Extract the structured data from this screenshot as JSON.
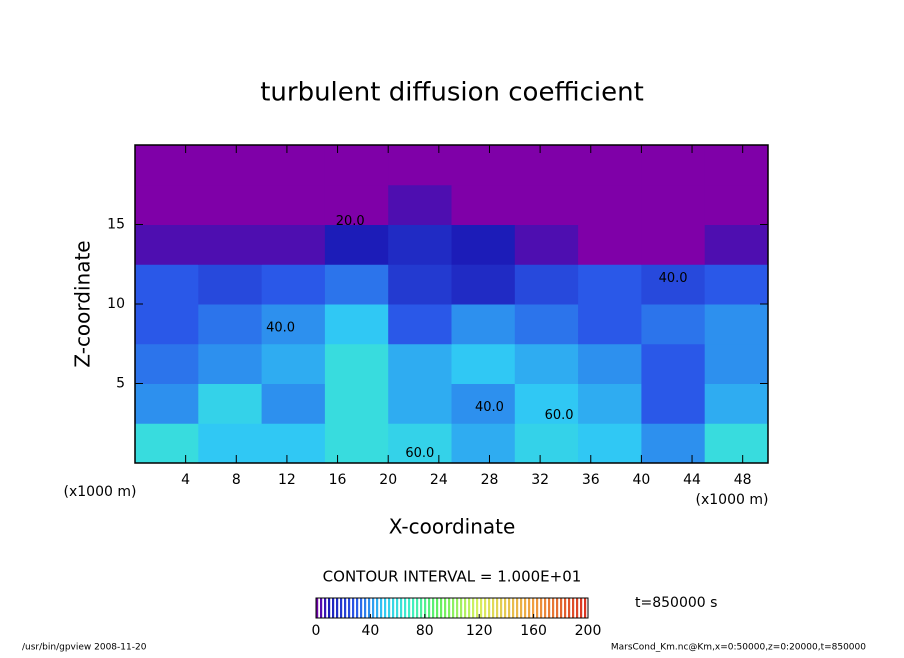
{
  "chart_data": {
    "type": "heatmap",
    "title": "turbulent diffusion coefficient",
    "xlabel": "X-coordinate",
    "ylabel": "Z-coordinate",
    "x_unit": "(x1000 m)",
    "y_unit": "(x1000 m)",
    "xlim": [
      0,
      50
    ],
    "ylim": [
      0,
      20
    ],
    "xticks": [
      4,
      8,
      12,
      16,
      20,
      24,
      28,
      32,
      36,
      40,
      44,
      48
    ],
    "yticks": [
      5,
      10,
      15
    ],
    "xbins": [
      0,
      5,
      10,
      15,
      20,
      25,
      30,
      35,
      40,
      45,
      50
    ],
    "ybins": [
      0,
      2.5,
      5,
      7.5,
      10,
      12.5,
      15,
      17.5,
      20
    ],
    "values": [
      [
        60,
        50,
        50,
        60,
        55,
        45,
        55,
        50,
        40,
        60
      ],
      [
        40,
        55,
        40,
        60,
        45,
        40,
        50,
        45,
        30,
        45
      ],
      [
        35,
        40,
        45,
        60,
        45,
        50,
        45,
        40,
        30,
        40
      ],
      [
        30,
        35,
        40,
        50,
        30,
        40,
        35,
        30,
        35,
        40
      ],
      [
        30,
        25,
        30,
        35,
        20,
        15,
        25,
        30,
        25,
        30
      ],
      [
        5,
        5,
        5,
        10,
        15,
        10,
        5,
        0,
        0,
        5
      ],
      [
        0,
        0,
        0,
        0,
        5,
        0,
        0,
        0,
        0,
        0
      ],
      [
        0,
        0,
        0,
        0,
        0,
        0,
        0,
        0,
        0,
        0
      ]
    ],
    "colormap": [
      [
        0,
        "#7f00a8"
      ],
      [
        10,
        "#1c1cb8"
      ],
      [
        30,
        "#2a58e8"
      ],
      [
        50,
        "#30c8f4"
      ],
      [
        70,
        "#40f0c8"
      ],
      [
        90,
        "#60f060"
      ],
      [
        120,
        "#d8f060"
      ],
      [
        160,
        "#f0a040"
      ],
      [
        200,
        "#d83020"
      ]
    ],
    "contour_labels": [
      {
        "text": "20.0",
        "x": 17,
        "y": 15.2
      },
      {
        "text": "40.0",
        "x": 11.5,
        "y": 8.5
      },
      {
        "text": "40.0",
        "x": 28,
        "y": 3.5
      },
      {
        "text": "60.0",
        "x": 22.5,
        "y": 0.6
      },
      {
        "text": "40.0",
        "x": 42.5,
        "y": 11.6
      },
      {
        "text": "60.0",
        "x": 33.5,
        "y": 3
      }
    ],
    "colorbar": {
      "lim": [
        0,
        200
      ],
      "ticks": [
        0,
        40,
        80,
        120,
        160,
        200
      ]
    },
    "contour_interval": "CONTOUR INTERVAL = 1.000E+01",
    "time_label": "t=850000 s",
    "footer_left": "/usr/bin/gpview   2008-11-20",
    "footer_right": "MarsCond_Km.nc@Km,x=0:50000,z=0:20000,t=850000"
  }
}
